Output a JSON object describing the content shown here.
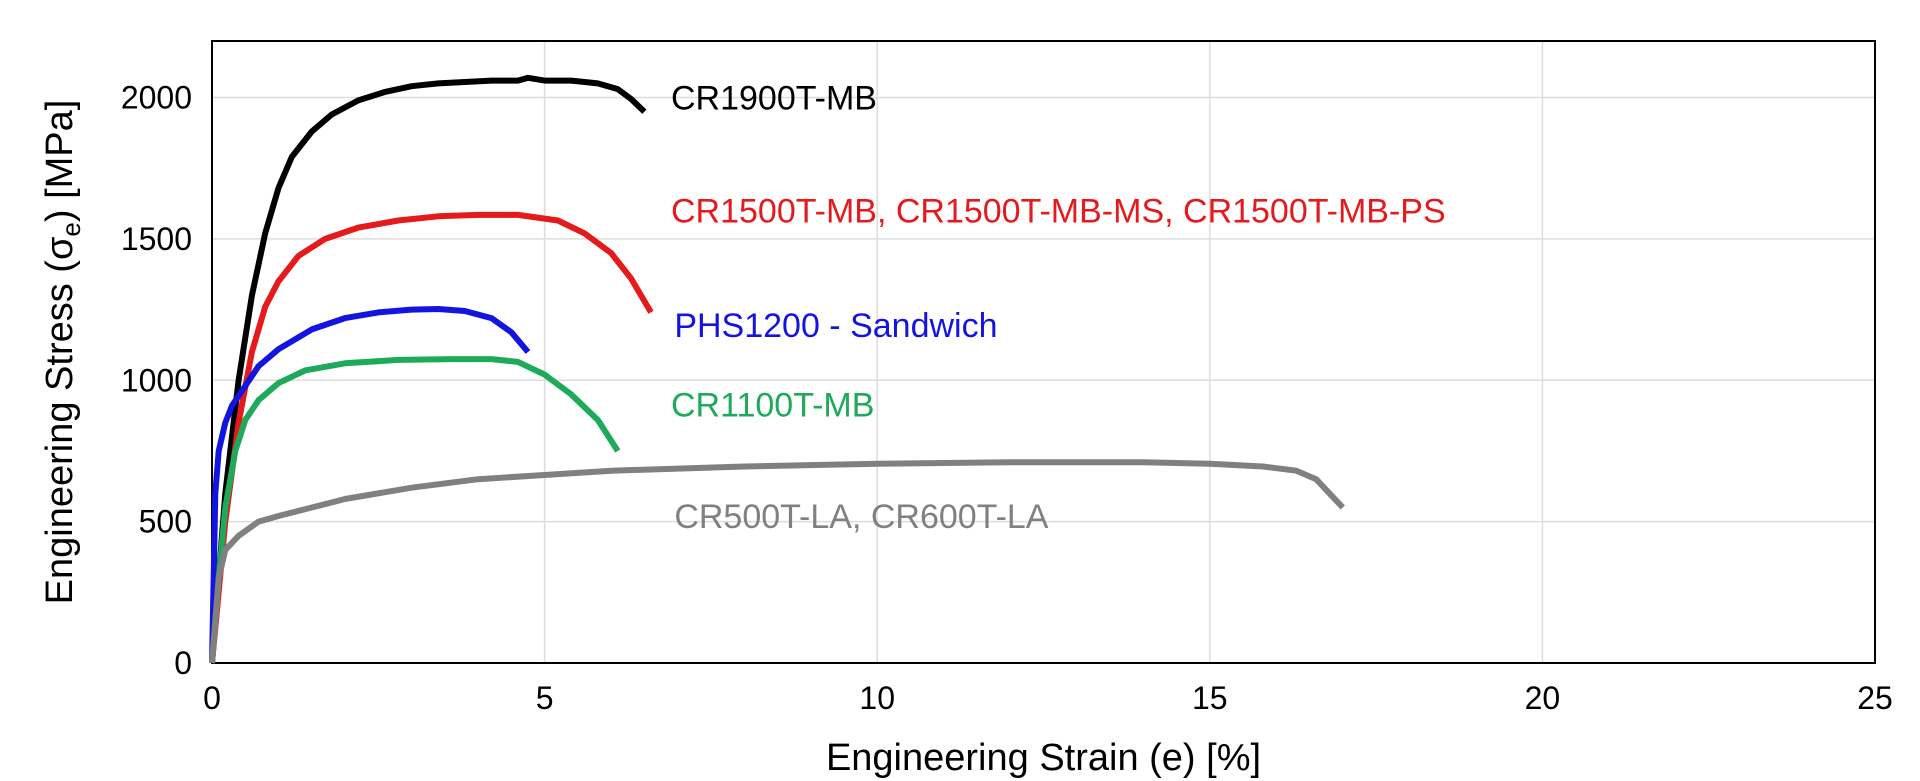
{
  "chart_data": {
    "type": "line",
    "title": "",
    "xlabel": "Engineering Strain (e) [%]",
    "ylabel_main": "Engineering Stress (σ",
    "ylabel_sub": "e",
    "ylabel_tail": ") [MPa]",
    "xlim": [
      0,
      25
    ],
    "ylim": [
      0,
      2200
    ],
    "xticks": [
      0,
      5,
      10,
      15,
      20,
      25
    ],
    "yticks": [
      0,
      500,
      1000,
      1500,
      2000
    ],
    "grid": true,
    "legend": "inline labels",
    "series": [
      {
        "name": "CR1900T-MB",
        "color": "#000000",
        "x": [
          0,
          0.2,
          0.4,
          0.6,
          0.8,
          1.0,
          1.2,
          1.5,
          1.8,
          2.2,
          2.6,
          3.0,
          3.4,
          3.8,
          4.2,
          4.6,
          4.75,
          5.0,
          5.4,
          5.8,
          6.1,
          6.3,
          6.5
        ],
        "y": [
          0,
          600,
          1000,
          1300,
          1520,
          1680,
          1790,
          1880,
          1940,
          1990,
          2020,
          2040,
          2050,
          2055,
          2060,
          2060,
          2070,
          2060,
          2060,
          2050,
          2030,
          1995,
          1950
        ]
      },
      {
        "name": "CR1500T-MB, CR1500T-MB-MS, CR1500T-MB-PS",
        "color": "#e41a1c",
        "x": [
          0,
          0.2,
          0.4,
          0.6,
          0.8,
          1.0,
          1.3,
          1.7,
          2.2,
          2.8,
          3.4,
          4.0,
          4.6,
          5.2,
          5.6,
          6.0,
          6.3,
          6.6
        ],
        "y": [
          0,
          500,
          850,
          1100,
          1260,
          1350,
          1440,
          1500,
          1540,
          1565,
          1580,
          1585,
          1585,
          1565,
          1520,
          1450,
          1360,
          1240
        ]
      },
      {
        "name": "PHS1200 - Sandwich",
        "color": "#1414e0",
        "x": [
          0,
          0.05,
          0.1,
          0.2,
          0.3,
          0.5,
          0.7,
          1.0,
          1.5,
          2.0,
          2.5,
          3.0,
          3.4,
          3.8,
          4.2,
          4.5,
          4.75
        ],
        "y": [
          0,
          600,
          750,
          850,
          910,
          980,
          1050,
          1110,
          1180,
          1220,
          1240,
          1250,
          1252,
          1245,
          1220,
          1170,
          1100
        ]
      },
      {
        "name": "CR1100T-MB",
        "color": "#1eaa5a",
        "x": [
          0,
          0.1,
          0.2,
          0.35,
          0.5,
          0.7,
          1.0,
          1.4,
          2.0,
          2.8,
          3.6,
          4.2,
          4.6,
          5.0,
          5.4,
          5.8,
          6.1
        ],
        "y": [
          0,
          300,
          550,
          750,
          860,
          930,
          990,
          1035,
          1060,
          1072,
          1075,
          1075,
          1065,
          1020,
          950,
          860,
          750
        ]
      },
      {
        "name": "CR500T-LA, CR600T-LA",
        "color": "#808080",
        "x": [
          0,
          0.1,
          0.2,
          0.4,
          0.7,
          1.0,
          1.5,
          2.0,
          3.0,
          4.0,
          5.0,
          6.0,
          8.0,
          10.0,
          12.0,
          14.0,
          15.0,
          15.8,
          16.3,
          16.6,
          16.8,
          17.0
        ],
        "y": [
          0,
          300,
          400,
          450,
          500,
          520,
          550,
          580,
          620,
          650,
          665,
          680,
          695,
          705,
          710,
          710,
          705,
          695,
          680,
          650,
          600,
          550
        ]
      }
    ],
    "labels": [
      {
        "text": "CR1900T-MB",
        "color": "#000000",
        "x": 6.9,
        "y": 2000
      },
      {
        "text": "CR1500T-MB, CR1500T-MB-MS, CR1500T-MB-PS",
        "color": "#e41a1c",
        "x": 6.9,
        "y": 1600
      },
      {
        "text": "PHS1200 - Sandwich",
        "color": "#1414e0",
        "x": 6.95,
        "y": 1195
      },
      {
        "text": "CR1100T-MB",
        "color": "#1eaa5a",
        "x": 6.9,
        "y": 915
      },
      {
        "text": "CR500T-LA, CR600T-LA",
        "color": "#808080",
        "x": 6.95,
        "y": 520
      }
    ]
  }
}
